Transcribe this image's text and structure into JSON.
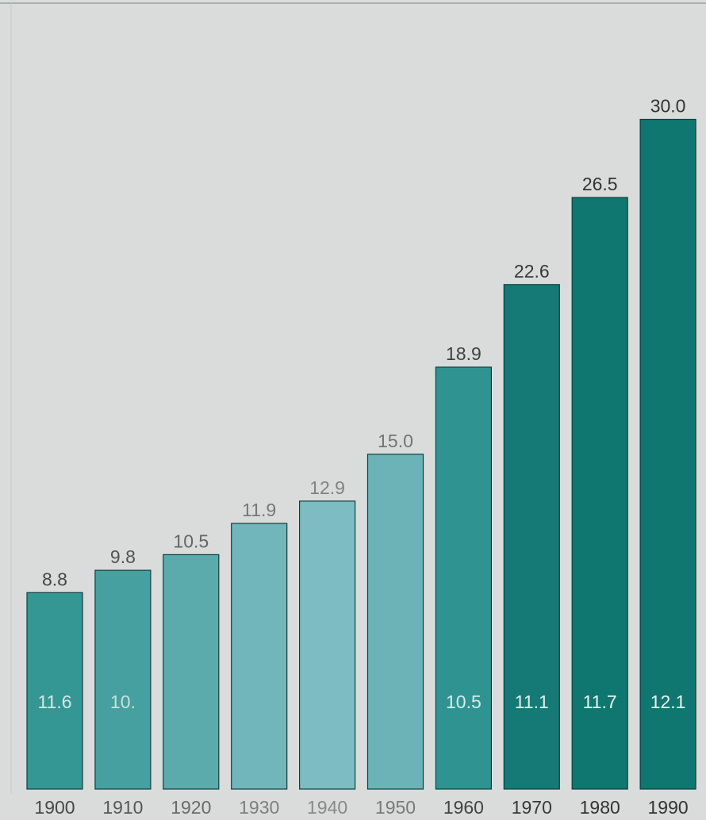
{
  "chart_data": {
    "type": "bar",
    "categories": [
      "1900",
      "1910",
      "1920",
      "1930",
      "1940",
      "1950",
      "1960",
      "1970",
      "1980",
      "1990"
    ],
    "values": [
      8.8,
      9.8,
      10.5,
      11.9,
      12.9,
      15.0,
      18.9,
      22.6,
      26.5,
      30.0
    ],
    "value_labels": [
      "8.8",
      "9.8",
      "10.5",
      "11.9",
      "12.9",
      "15.0",
      "18.9",
      "22.6",
      "26.5",
      "30.0"
    ],
    "inner_labels": [
      "11.6",
      "10.",
      "",
      "",
      "",
      "",
      "10.5",
      "11.1",
      "11.7",
      "12.1"
    ],
    "ylim": [
      0,
      33
    ],
    "grid": false,
    "colors": {
      "bar": "#1f8c86",
      "bar_dark": "#0f7670",
      "bar_light": "#8cc4cc",
      "bar_outline": "#0e3f3c",
      "panel": "#d9dcdb",
      "inner_label": "#e9f3f2",
      "value_label": "#333333"
    }
  }
}
